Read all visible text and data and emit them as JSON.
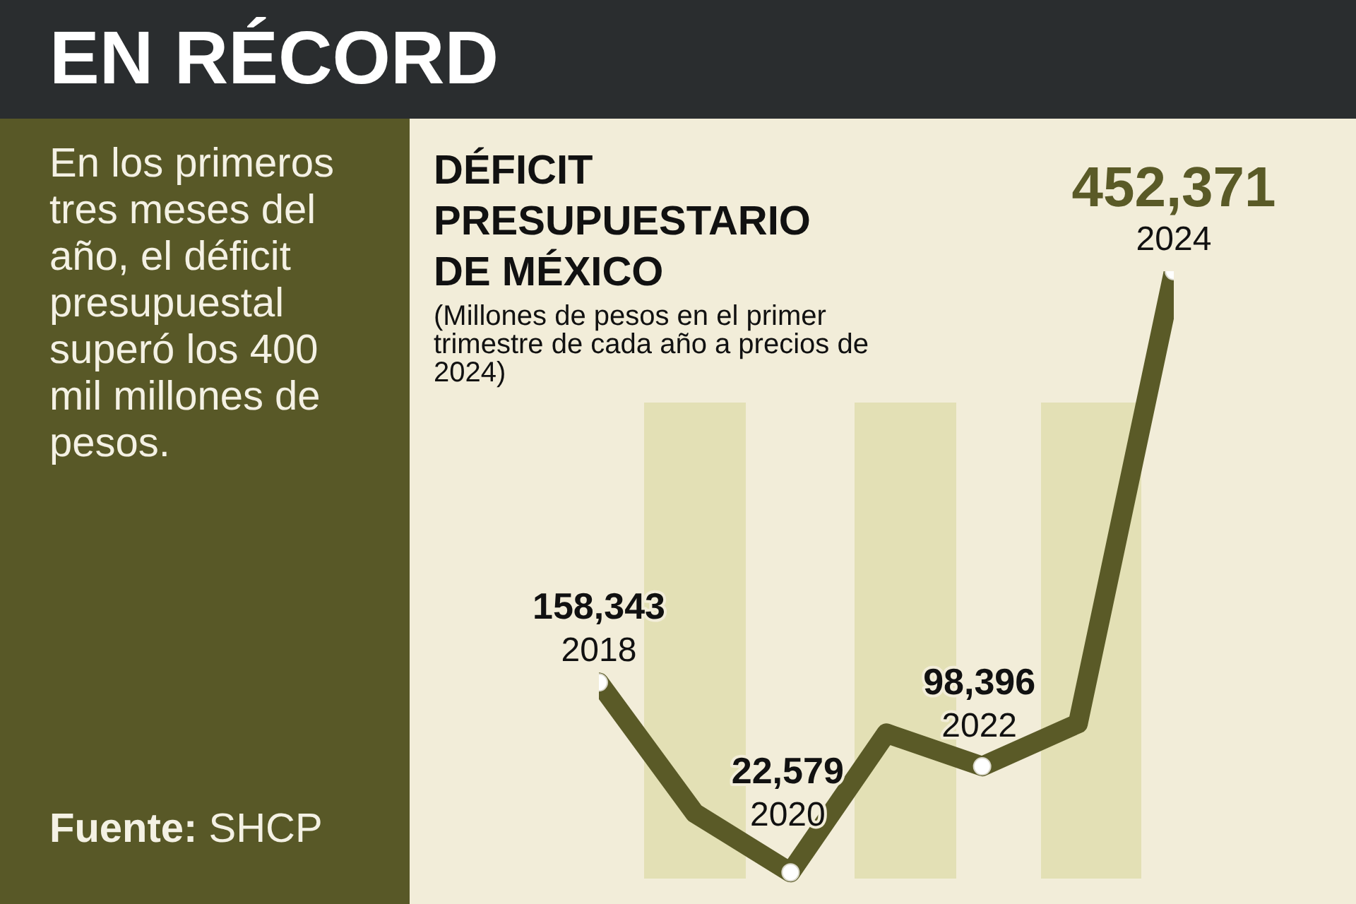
{
  "chart_data": {
    "type": "line",
    "title": "EN RÉCORD",
    "subtitle": "DÉFICIT PRESUPUESTARIO DE MÉXICO",
    "annotations": [
      "En los primeros tres meses del año, el déficit presupuestal superó los 400 mil millones de pesos.",
      "(Millones de pesos en el primer trimestre de cada año a precios de 2024)",
      "Fuente: SHCP"
    ],
    "categories": [
      "2018",
      null,
      "2020",
      null,
      "2022",
      null,
      "2024"
    ],
    "values": [
      158343,
      65000,
      22579,
      122000,
      98396,
      129000,
      452371
    ],
    "value_labels": [
      "158,343",
      null,
      "22,579",
      null,
      "98,396",
      null,
      "452,371"
    ],
    "color": "#5a5a27",
    "marker": "circle",
    "line_style": "solid"
  }
}
